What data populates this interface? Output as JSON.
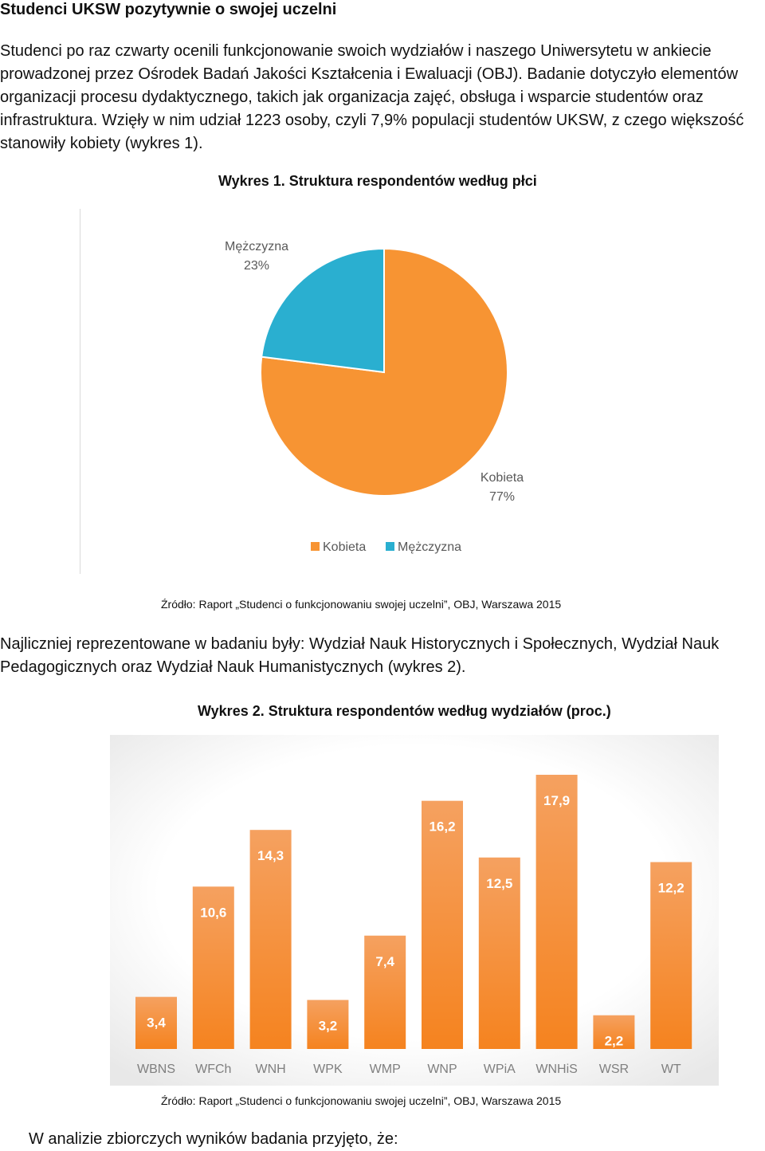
{
  "document": {
    "heading": "Studenci UKSW pozytywnie o swojej uczelni",
    "paragraph1": "Studenci po raz czwarty ocenili funkcjonowanie swoich wydziałów i naszego Uniwersytetu w ankiecie prowadzonej przez Ośrodek Badań Jakości Kształcenia i Ewaluacji (OBJ). Badanie dotyczyło elementów organizacji procesu dydaktycznego, takich jak organizacja zajęć, obsługa i wsparcie studentów oraz infrastruktura. Wzięły w nim udział 1223 osoby, czyli 7,9% populacji studentów UKSW, z czego większość stanowiły kobiety (wykres 1).",
    "figure1_title": "Wykres 1. Struktura respondentów według płci",
    "source1": "Źródło: Raport „Studenci o funkcjonowaniu swojej uczelni”, OBJ, Warszawa 2015",
    "paragraph2": "Najliczniej reprezentowane w badaniu były: Wydział Nauk Historycznych i Społecznych, Wydział Nauk Pedagogicznych oraz Wydział Nauk Humanistycznych (wykres 2).",
    "figure2_title": "Wykres 2. Struktura respondentów według wydziałów (proc.)",
    "source2": "Źródło: Raport „Studenci o funkcjonowaniu swojej uczelni”, OBJ, Warszawa 2015",
    "closing": "W analizie zbiorczych wyników badania przyjęto, że:"
  },
  "chart_data": [
    {
      "type": "pie",
      "slices": [
        {
          "label": "Kobieta",
          "value": 77,
          "value_label": "77%",
          "color": "#F79433"
        },
        {
          "label": "Mężczyzna",
          "value": 23,
          "value_label": "23%",
          "color": "#2AAFD0"
        }
      ],
      "legend": [
        "Kobieta",
        "Mężczyzna"
      ],
      "legend_position": "bottom"
    },
    {
      "type": "bar",
      "categories": [
        "WBNS",
        "WFCh",
        "WNH",
        "WPK",
        "WMP",
        "WNP",
        "WPiA",
        "WNHiS",
        "WSR",
        "WT"
      ],
      "values": [
        3.4,
        10.6,
        14.3,
        3.2,
        7.4,
        16.2,
        12.5,
        17.9,
        2.2,
        12.2
      ],
      "value_labels": [
        "3,4",
        "10,6",
        "14,3",
        "3,2",
        "7,4",
        "16,2",
        "12,5",
        "17,9",
        "2,2",
        "12,2"
      ],
      "color": "#F5831F",
      "grid": false
    }
  ]
}
